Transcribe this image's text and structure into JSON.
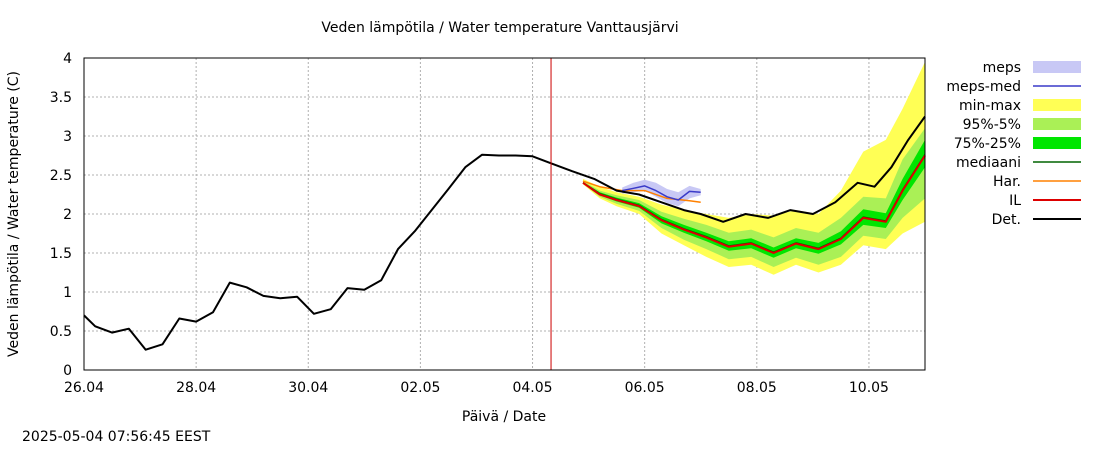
{
  "chart_data": {
    "type": "line",
    "title": "Veden lämpötila / Water temperature Vanttausjärvi",
    "xlabel": "Päivä / Date",
    "ylabel": "Veden lämpötila / Water temperature (C)",
    "ylim": [
      0,
      4
    ],
    "xlim": [
      0,
      15
    ],
    "y_ticks": [
      "0",
      "0.5",
      "1",
      "1.5",
      "2",
      "2.5",
      "3",
      "3.5",
      "4"
    ],
    "x_ticks": [
      {
        "x": 0,
        "label": "26.04"
      },
      {
        "x": 2,
        "label": "28.04"
      },
      {
        "x": 4,
        "label": "30.04"
      },
      {
        "x": 6,
        "label": "02.05"
      },
      {
        "x": 8,
        "label": "04.05"
      },
      {
        "x": 10,
        "label": "06.05"
      },
      {
        "x": 12,
        "label": "08.05"
      },
      {
        "x": 14,
        "label": "10.05"
      }
    ],
    "grid": true,
    "legend_position": "right",
    "forecast_marker_x": 8.33,
    "colors": {
      "meps": "#c8c8f5",
      "meps_med": "#3a3ac8",
      "minmax": "#ffff55",
      "p95_5": "#aaf056",
      "p75_25": "#00e600",
      "mediaani": "#006400",
      "har": "#ff8000",
      "il": "#dd0000",
      "det": "#000000",
      "marker": "#cc0000",
      "grid": "#b0b0b0"
    },
    "legend": [
      {
        "key": "meps",
        "label": "meps",
        "style": "band"
      },
      {
        "key": "meps_med",
        "label": "meps-med",
        "style": "line"
      },
      {
        "key": "minmax",
        "label": "min-max",
        "style": "band"
      },
      {
        "key": "p95_5",
        "label": "95%-5%",
        "style": "band"
      },
      {
        "key": "p75_25",
        "label": "75%-25%",
        "style": "band"
      },
      {
        "key": "mediaani",
        "label": "mediaani",
        "style": "line"
      },
      {
        "key": "har",
        "label": "Har.",
        "style": "line"
      },
      {
        "key": "il",
        "label": "IL",
        "style": "line"
      },
      {
        "key": "det",
        "label": "Det.",
        "style": "line"
      }
    ],
    "series": [
      {
        "key": "det_obs",
        "x": [
          0,
          0.2,
          0.5,
          0.8,
          1.1,
          1.4,
          1.7,
          2.0,
          2.3,
          2.6,
          2.9,
          3.2,
          3.5,
          3.8,
          4.1,
          4.4,
          4.7,
          5.0,
          5.3,
          5.6,
          5.9,
          6.2,
          6.5,
          6.8,
          7.1,
          7.4,
          7.7,
          8.0,
          8.33
        ],
        "y": [
          0.7,
          0.56,
          0.48,
          0.53,
          0.26,
          0.33,
          0.66,
          0.62,
          0.74,
          1.12,
          1.06,
          0.95,
          0.92,
          0.94,
          0.72,
          0.78,
          1.05,
          1.03,
          1.15,
          1.55,
          1.78,
          2.05,
          2.32,
          2.6,
          2.76,
          2.75,
          2.75,
          2.74,
          2.65
        ]
      },
      {
        "key": "det_fc",
        "x": [
          8.33,
          8.7,
          9.1,
          9.5,
          9.9,
          10.3,
          10.7,
          11.0,
          11.4,
          11.8,
          12.2,
          12.6,
          13.0,
          13.4,
          13.8,
          14.1,
          14.4,
          14.7,
          15.0
        ],
        "y": [
          2.65,
          2.55,
          2.45,
          2.3,
          2.25,
          2.15,
          2.05,
          2.0,
          1.9,
          2.0,
          1.95,
          2.05,
          2.0,
          2.15,
          2.4,
          2.35,
          2.6,
          2.95,
          3.25
        ]
      },
      {
        "key": "meps_med",
        "x": [
          9.6,
          9.8,
          10.0,
          10.2,
          10.4,
          10.6,
          10.8,
          11.0
        ],
        "y": [
          2.3,
          2.33,
          2.36,
          2.3,
          2.22,
          2.18,
          2.29,
          2.28
        ]
      },
      {
        "key": "har",
        "x": [
          8.9,
          9.2,
          9.6,
          10.0,
          10.4,
          10.8,
          11.0
        ],
        "y": [
          2.42,
          2.35,
          2.3,
          2.3,
          2.2,
          2.17,
          2.15
        ]
      },
      {
        "key": "il",
        "x": [
          8.9,
          9.2,
          9.5,
          9.9,
          10.3,
          10.7,
          11.1,
          11.5,
          11.9,
          12.3,
          12.7,
          13.1,
          13.5,
          13.9,
          14.3,
          14.6,
          15.0
        ],
        "y": [
          2.4,
          2.25,
          2.18,
          2.1,
          1.92,
          1.8,
          1.7,
          1.58,
          1.62,
          1.5,
          1.62,
          1.55,
          1.68,
          1.95,
          1.9,
          2.3,
          2.75
        ]
      },
      {
        "key": "mediaani",
        "x": [
          8.9,
          9.2,
          9.5,
          9.9,
          10.3,
          10.7,
          11.1,
          11.5,
          11.9,
          12.3,
          12.7,
          13.1,
          13.5,
          13.9,
          14.3,
          14.6,
          15.0
        ],
        "y": [
          2.4,
          2.26,
          2.19,
          2.11,
          1.93,
          1.81,
          1.71,
          1.59,
          1.63,
          1.51,
          1.63,
          1.56,
          1.69,
          1.96,
          1.91,
          2.31,
          2.76
        ]
      }
    ],
    "bands": [
      {
        "key": "minmax",
        "x": [
          8.9,
          9.2,
          9.5,
          9.9,
          10.3,
          10.7,
          11.1,
          11.5,
          11.9,
          12.3,
          12.7,
          13.1,
          13.5,
          13.9,
          14.3,
          14.6,
          15.0
        ],
        "lower": [
          2.38,
          2.2,
          2.1,
          2.0,
          1.75,
          1.6,
          1.45,
          1.32,
          1.35,
          1.22,
          1.35,
          1.25,
          1.35,
          1.6,
          1.55,
          1.75,
          1.9
        ],
        "upper": [
          2.45,
          2.35,
          2.28,
          2.22,
          2.12,
          2.05,
          2.0,
          1.95,
          2.0,
          1.98,
          2.05,
          2.0,
          2.3,
          2.8,
          2.95,
          3.35,
          3.95
        ]
      },
      {
        "key": "p95_5",
        "x": [
          8.9,
          9.2,
          9.5,
          9.9,
          10.3,
          10.7,
          11.1,
          11.5,
          11.9,
          12.3,
          12.7,
          13.1,
          13.5,
          13.9,
          14.3,
          14.6,
          15.0
        ],
        "lower": [
          2.39,
          2.22,
          2.13,
          2.04,
          1.82,
          1.67,
          1.55,
          1.42,
          1.45,
          1.32,
          1.44,
          1.35,
          1.45,
          1.72,
          1.68,
          1.95,
          2.2
        ],
        "upper": [
          2.42,
          2.3,
          2.24,
          2.18,
          2.03,
          1.94,
          1.86,
          1.76,
          1.8,
          1.7,
          1.82,
          1.76,
          1.95,
          2.22,
          2.2,
          2.7,
          3.1
        ]
      },
      {
        "key": "p75_25",
        "x": [
          8.9,
          9.2,
          9.5,
          9.9,
          10.3,
          10.7,
          11.1,
          11.5,
          11.9,
          12.3,
          12.7,
          13.1,
          13.5,
          13.9,
          14.3,
          14.6,
          15.0
        ],
        "lower": [
          2.4,
          2.24,
          2.16,
          2.08,
          1.88,
          1.76,
          1.65,
          1.53,
          1.56,
          1.44,
          1.56,
          1.49,
          1.61,
          1.86,
          1.82,
          2.18,
          2.6
        ],
        "upper": [
          2.41,
          2.28,
          2.21,
          2.14,
          1.97,
          1.86,
          1.76,
          1.65,
          1.69,
          1.57,
          1.69,
          1.63,
          1.78,
          2.06,
          2.01,
          2.45,
          2.95
        ]
      },
      {
        "key": "meps",
        "x": [
          9.6,
          9.8,
          10.0,
          10.2,
          10.4,
          10.6,
          10.8,
          11.0
        ],
        "lower": [
          2.26,
          2.28,
          2.3,
          2.22,
          2.14,
          2.1,
          2.2,
          2.24
        ],
        "upper": [
          2.34,
          2.4,
          2.44,
          2.4,
          2.32,
          2.28,
          2.36,
          2.32
        ]
      }
    ]
  },
  "footer": {
    "timestamp": "2025-05-04 07:56:45 EEST"
  }
}
